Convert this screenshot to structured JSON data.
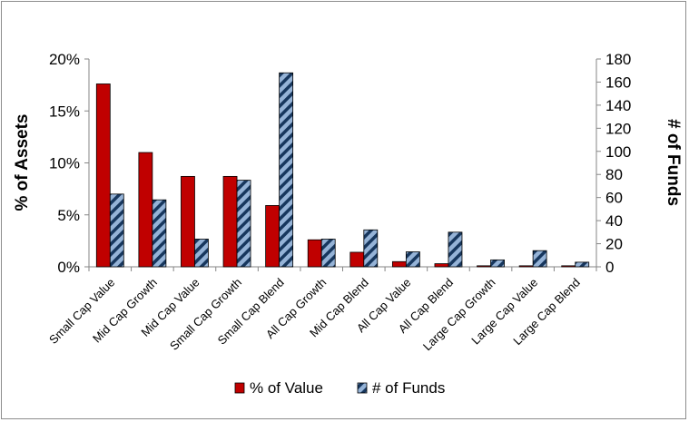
{
  "chart_data": {
    "type": "bar",
    "categories": [
      "Small Cap Value",
      "Mid Cap Growth",
      "Mid Cap Value",
      "Small Cap Growth",
      "Small Cap Blend",
      "All Cap Growth",
      "Mid Cap Blend",
      "All Cap Value",
      "All Cap Blend",
      "Large Cap Growth",
      "Large Cap Value",
      "Large Cap Blend"
    ],
    "series": [
      {
        "name": "% of Value",
        "axis": "left",
        "color": "#c00000",
        "pattern": "solid",
        "values": [
          17.6,
          11.0,
          8.7,
          8.7,
          5.9,
          2.6,
          1.4,
          0.5,
          0.3,
          0.1,
          0.1,
          0.1
        ]
      },
      {
        "name": "# of Funds",
        "axis": "right",
        "color": "#95b3d7",
        "pattern": "hatched",
        "values": [
          63,
          58,
          24,
          75,
          168,
          24,
          32,
          13,
          30,
          6,
          14,
          4
        ]
      }
    ],
    "y_left": {
      "label": "% of Assets",
      "ticks": [
        "0%",
        "5%",
        "10%",
        "15%",
        "20%"
      ],
      "tick_values": [
        0,
        5,
        10,
        15,
        20
      ],
      "range": [
        0,
        20
      ]
    },
    "y_right": {
      "label": "# of Funds",
      "ticks": [
        "0",
        "20",
        "40",
        "60",
        "80",
        "100",
        "120",
        "140",
        "160",
        "180"
      ],
      "tick_values": [
        0,
        20,
        40,
        60,
        80,
        100,
        120,
        140,
        160,
        180
      ],
      "range": [
        0,
        180
      ]
    },
    "grid": false,
    "legend_position": "bottom"
  }
}
